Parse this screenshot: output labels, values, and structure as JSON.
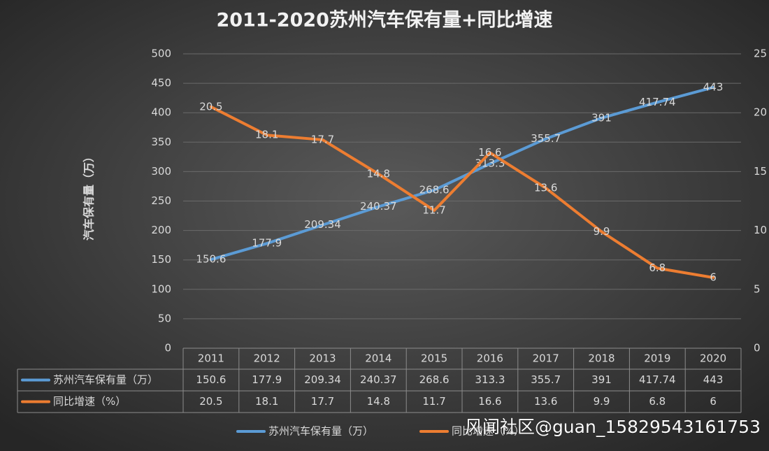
{
  "chart_data": {
    "type": "line",
    "title": "2011-2020苏州汽车保有量+同比增速",
    "y_label": "汽车保有量（万）",
    "categories": [
      "2011",
      "2012",
      "2013",
      "2014",
      "2015",
      "2016",
      "2017",
      "2018",
      "2019",
      "2020"
    ],
    "series": [
      {
        "name": "苏州汽车保有量（万）",
        "color": "#5b9bd5",
        "values": [
          150.6,
          177.9,
          209.34,
          240.37,
          268.6,
          313.3,
          355.7,
          391,
          417.74,
          443
        ]
      },
      {
        "name": "同比增速（%）",
        "color": "#ed7d31",
        "axis": "y2",
        "values": [
          20.5,
          18.1,
          17.7,
          14.8,
          11.7,
          16.6,
          13.6,
          9.9,
          6.8,
          6
        ]
      }
    ],
    "ylim": [
      0,
      500
    ],
    "yticks": [
      0,
      50,
      100,
      150,
      200,
      250,
      300,
      350,
      400,
      450,
      500
    ],
    "y2lim": [
      0,
      25
    ],
    "y2ticks": [
      0,
      5,
      10,
      15,
      20,
      25
    ],
    "grid": true,
    "data_labels": true,
    "data_table": true,
    "legend": "bottom",
    "watermark": "风闻社区@guan_15829543161753"
  }
}
